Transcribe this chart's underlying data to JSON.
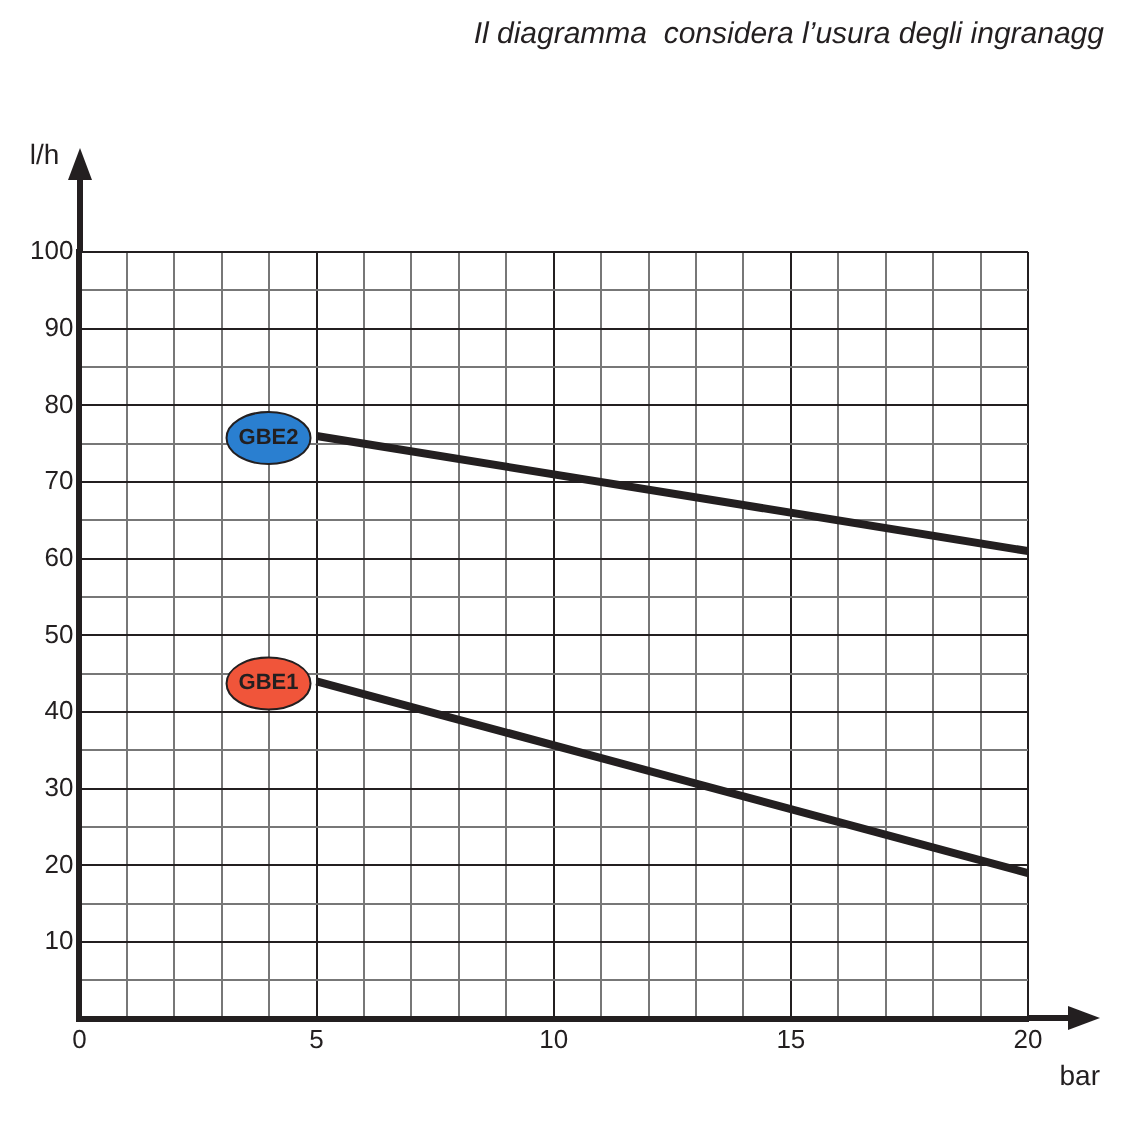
{
  "chart_data": {
    "type": "line",
    "title": "Il diagramma  considera l’usura degli ingranagg",
    "xlabel": "bar",
    "ylabel": "l/h",
    "xlim": [
      0,
      20
    ],
    "ylim": [
      0,
      100
    ],
    "xticks": [
      0,
      {
        "value": 1,
        "label": null
      },
      {
        "value": 2,
        "label": null
      },
      {
        "value": 3,
        "label": null
      },
      {
        "value": 4,
        "label": null
      },
      5,
      {
        "value": 6,
        "label": null
      },
      {
        "value": 7,
        "label": null
      },
      {
        "value": 8,
        "label": null
      },
      {
        "value": 9,
        "label": null
      },
      10,
      {
        "value": 11,
        "label": null
      },
      {
        "value": 12,
        "label": null
      },
      {
        "value": 13,
        "label": null
      },
      {
        "value": 14,
        "label": null
      },
      15,
      {
        "value": 16,
        "label": null
      },
      {
        "value": 17,
        "label": null
      },
      {
        "value": 18,
        "label": null
      },
      {
        "value": 19,
        "label": null
      },
      20
    ],
    "yticks": [
      {
        "value": 0,
        "label": null
      },
      {
        "value": 5,
        "label": null
      },
      10,
      {
        "value": 15,
        "label": null
      },
      20,
      {
        "value": 25,
        "label": null
      },
      30,
      {
        "value": 35,
        "label": null
      },
      40,
      {
        "value": 45,
        "label": null
      },
      50,
      {
        "value": 55,
        "label": null
      },
      60,
      {
        "value": 65,
        "label": null
      },
      70,
      {
        "value": 75,
        "label": null
      },
      80,
      {
        "value": 85,
        "label": null
      },
      90,
      {
        "value": 95,
        "label": null
      },
      100
    ],
    "grid": true,
    "legend": false,
    "marker": "none",
    "line_style": "solid",
    "x": [
      5,
      20
    ],
    "series": [
      {
        "name": "GBE2",
        "color": "#231f20",
        "values": [
          76,
          61
        ]
      },
      {
        "name": "GBE1",
        "color": "#231f20",
        "values": [
          44,
          19
        ]
      }
    ]
  }
}
